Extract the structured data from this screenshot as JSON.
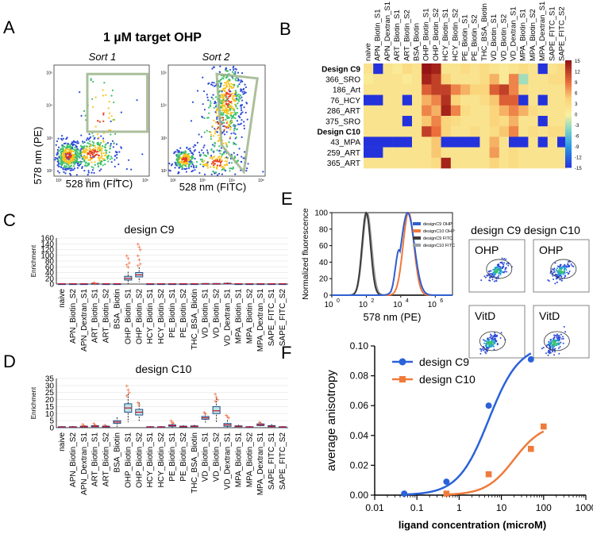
{
  "panel_letters": {
    "A": "A",
    "B": "B",
    "C": "C",
    "D": "D",
    "E": "E",
    "F": "F"
  },
  "panel_a": {
    "title": "1 µM target OHP",
    "sort1": "Sort 1",
    "sort2": "Sort 2",
    "ylabel": "578 nm (PE)",
    "xlabel1": "528 nm (FITC)",
    "xlabel2": "528 nm (FITC)"
  },
  "panel_e": {
    "xlabel": "578 nm (PE)",
    "ylabel": "Normalized fluorescence",
    "yticks": [
      "0",
      "20",
      "40",
      "60",
      "80",
      "100"
    ],
    "xticks": [
      "10",
      "10",
      "10",
      "10"
    ],
    "xtick_exps": [
      "0",
      "2",
      "4",
      "6"
    ],
    "legend": [
      {
        "label": "designC9 OHP",
        "color": "#2f5fd0"
      },
      {
        "label": "designC10 OHP",
        "color": "#f0783c"
      },
      {
        "label": "designC9 FITC",
        "color": "#3a3a3a"
      },
      {
        "label": "designC10 FITC",
        "color": "#9aa0a6"
      }
    ],
    "header": "design C9 design C10",
    "tiles": [
      "OHP",
      "OHP",
      "VitD",
      "VitD"
    ]
  },
  "chart_data": [
    {
      "panel": "B",
      "type": "heatmap",
      "columns": [
        "naive",
        "APN_Biotin_S1",
        "APN_Dextran_S1",
        "ART_Biotin_S1",
        "ART_Biotin_S2",
        "BSA_Biotin",
        "OHP_Biotin_S1",
        "OHP_Biotin_S2",
        "HCY_Biotin_S1",
        "HCY_Biotin_S2",
        "PE_Biotin_S1",
        "PE_Biotin_S2",
        "THC_BSA_Biotin",
        "VD_Biotin_S1",
        "VD_Biotin_S2",
        "VD_Dextran_S1",
        "MPA_Biotin_S1",
        "MPA_Biotin_S2",
        "MPA_Dextran_S1",
        "SAPE_FITC_S1",
        "SAPE_FITC_S2"
      ],
      "rows": [
        "Design C9",
        "366_SRO",
        "186_Art",
        "76_HCY",
        "286_ART",
        "375_SRO",
        "Design C10",
        "43_MPA",
        "259_ART",
        "365_ART"
      ],
      "bold_rows": [
        "Design C9",
        "Design C10"
      ],
      "colorbar_ticks": [
        "15",
        "12",
        "9",
        "6",
        "3",
        "0",
        "-3",
        "-6",
        "-9",
        "-12",
        "-15"
      ],
      "vlim": [
        -15,
        15
      ],
      "values": [
        [
          2,
          -15,
          2,
          1,
          3,
          2,
          15,
          14,
          2,
          2,
          3,
          2,
          3,
          2,
          1,
          2,
          3,
          2,
          -15,
          2,
          3
        ],
        [
          1,
          2,
          2,
          2,
          1,
          2,
          14,
          12,
          4,
          2,
          2,
          2,
          3,
          6,
          1,
          8,
          -3,
          2,
          2,
          3,
          3
        ],
        [
          2,
          2,
          2,
          2,
          2,
          2,
          10,
          12,
          12,
          8,
          6,
          4,
          4,
          10,
          12,
          8,
          3,
          2,
          2,
          2,
          2
        ],
        [
          -15,
          -15,
          2,
          2,
          -15,
          2,
          6,
          8,
          13,
          4,
          2,
          2,
          3,
          5,
          10,
          10,
          -15,
          2,
          -15,
          2,
          2
        ],
        [
          2,
          2,
          2,
          2,
          2,
          2,
          8,
          6,
          14,
          8,
          3,
          2,
          2,
          4,
          6,
          8,
          6,
          3,
          2,
          2,
          2
        ],
        [
          2,
          2,
          2,
          2,
          -15,
          2,
          5,
          8,
          4,
          3,
          2,
          2,
          2,
          4,
          3,
          6,
          2,
          2,
          -15,
          2,
          2
        ],
        [
          2,
          2,
          2,
          2,
          2,
          2,
          12,
          9,
          4,
          2,
          2,
          3,
          2,
          3,
          5,
          8,
          2,
          3,
          2,
          3,
          3
        ],
        [
          -15,
          -15,
          -15,
          -15,
          -15,
          2,
          2,
          5,
          -15,
          -15,
          -15,
          -15,
          2,
          6,
          2,
          -15,
          -15,
          2,
          -15,
          2,
          -15
        ],
        [
          -15,
          -15,
          2,
          2,
          2,
          2,
          2,
          5,
          2,
          2,
          2,
          2,
          2,
          7,
          2,
          3,
          2,
          2,
          2,
          2,
          2
        ],
        [
          2,
          2,
          2,
          2,
          2,
          2,
          2,
          3,
          14,
          2,
          2,
          2,
          2,
          4,
          2,
          3,
          2,
          2,
          2,
          2,
          2
        ]
      ]
    },
    {
      "panel": "C",
      "type": "box",
      "title": "design C9",
      "ylabel": "Enrichment",
      "ylim": [
        0,
        160
      ],
      "yticks": [
        "0",
        "20",
        "40",
        "60",
        "80",
        "100",
        "120",
        "140",
        "160"
      ],
      "categories": [
        "naive",
        "APN_Biotin_S2",
        "APN_Dextran_S1",
        "ART_Biotin_S1",
        "ART_Biotin_S2",
        "BSA_Biotin",
        "OHP_Biotin_S1",
        "OHP_Biotin_S2",
        "HCY_Biotin_S1",
        "HCY_Biotin_S2",
        "PE_Biotin_S1",
        "PE_Biotin_S2",
        "THC_BSA_Biotin",
        "VD_Biotin_S1",
        "VD_Biotin_S2",
        "VD_Dextran_S1",
        "MPA_Biotin_S1",
        "MPA_Biotin_S2",
        "MPA_Dextran_S1",
        "SAPE_FITC_S1",
        "SAPE_FITC_S2"
      ],
      "medians": [
        1,
        1,
        1,
        2,
        1,
        1,
        20,
        32,
        1,
        1,
        1,
        1,
        1,
        1,
        1,
        2,
        1,
        1,
        1,
        1,
        1
      ],
      "q1": [
        1,
        1,
        1,
        1,
        1,
        1,
        14,
        25,
        1,
        1,
        1,
        1,
        1,
        1,
        1,
        1,
        1,
        1,
        1,
        1,
        1
      ],
      "q3": [
        1,
        1,
        1,
        2,
        1,
        1,
        27,
        40,
        1,
        1,
        1,
        1,
        1,
        2,
        2,
        3,
        1,
        1,
        1,
        1,
        1
      ],
      "outliers": [
        [],
        [],
        [],
        [
          6,
          3
        ],
        [],
        [],
        [
          100,
          90,
          75,
          68,
          60
        ],
        [
          140,
          130,
          120,
          100,
          85,
          70,
          65
        ],
        [],
        [],
        [],
        [],
        [],
        [],
        [],
        [],
        [],
        [],
        [],
        [],
        []
      ]
    },
    {
      "panel": "D",
      "type": "box",
      "title": "design C10",
      "ylabel": "Enrichment",
      "ylim": [
        0,
        35
      ],
      "yticks": [
        "0",
        "5",
        "10",
        "15",
        "20",
        "25",
        "30",
        "35"
      ],
      "categories": [
        "naive",
        "APN_Biotin_S2",
        "APN_Dextran_S1",
        "ART_Biotin_S1",
        "ART_Biotin_S2",
        "BSA_Biotin",
        "OHP_Biotin_S1",
        "OHP_Biotin_S2",
        "HCY_Biotin_S1",
        "HCY_Biotin_S2",
        "PE_Biotin_S1",
        "PE_Biotin_S2",
        "THC_BSA_Biotin",
        "VD_Biotin_S1",
        "VD_Biotin_S2",
        "VD_Dextran_S1",
        "MPA_Biotin_S1",
        "MPA_Biotin_S2",
        "MPA_Dextran_S1",
        "SAPE_FITC_S1",
        "SAPE_FITC_S2"
      ],
      "medians": [
        0.5,
        0.5,
        0.8,
        1,
        0.8,
        4,
        14,
        11,
        0.5,
        0.5,
        1.5,
        0.8,
        1,
        7,
        12,
        2,
        1,
        0.5,
        2,
        1,
        0.5
      ],
      "q1": [
        0.3,
        0.3,
        0.5,
        0.7,
        0.5,
        3,
        11,
        9,
        0.3,
        0.3,
        1,
        0.5,
        0.7,
        6,
        10,
        1,
        0.7,
        0.3,
        1.5,
        0.7,
        0.3
      ],
      "q3": [
        0.7,
        0.7,
        1.1,
        1.4,
        1.1,
        5,
        17,
        13,
        0.7,
        0.7,
        2,
        1.1,
        1.3,
        8,
        15,
        3,
        1.3,
        0.7,
        2.7,
        1.5,
        0.7
      ],
      "outliers": [
        [],
        [],
        [
          2.5,
          1.8
        ],
        [
          3,
          2
        ],
        [
          2
        ],
        [],
        [
          30,
          27,
          25,
          23
        ],
        [
          18,
          16
        ],
        [],
        [],
        [
          5,
          4,
          3.5
        ],
        [],
        [],
        [
          11,
          10
        ],
        [
          24,
          22,
          20,
          19
        ],
        [
          9,
          8,
          7
        ],
        [],
        [],
        [
          4,
          3.5
        ],
        [],
        []
      ]
    },
    {
      "panel": "E",
      "type": "line",
      "xlabel": "578 nm (PE)",
      "ylabel": "Normalized fluorescence",
      "ylim": [
        0,
        100
      ],
      "xscale": "log",
      "xlim_exp": [
        0,
        7
      ],
      "series": [
        {
          "name": "designC9 OHP",
          "color": "#2f5fd0",
          "peak_log10": 4.4,
          "width": 0.55,
          "left_shoulder_log10": 3.9
        },
        {
          "name": "designC10 OHP",
          "color": "#f0783c",
          "peak_log10": 4.45,
          "width": 0.45
        },
        {
          "name": "designC9 FITC",
          "color": "#3a3a3a",
          "peak_log10": 2.0,
          "width": 0.35
        },
        {
          "name": "designC10 FITC",
          "color": "#9aa0a6",
          "peak_log10": 2.05,
          "width": 0.37
        }
      ]
    },
    {
      "panel": "F",
      "type": "scatter",
      "xlabel": "ligand concentration (microM)",
      "ylabel": "average anisotropy",
      "xscale": "log",
      "xticks": [
        "0.01",
        "0.1",
        "1",
        "10",
        "100",
        "1000"
      ],
      "yticks": [
        "0.00",
        "0.02",
        "0.04",
        "0.06",
        "0.08",
        "0.10"
      ],
      "ylim": [
        0,
        0.1
      ],
      "xlim": [
        0.01,
        1000
      ],
      "series": [
        {
          "name": "design C9",
          "color": "#2b62d9",
          "marker": "circle",
          "x": [
            0.05,
            0.5,
            5,
            50
          ],
          "y": [
            0.001,
            0.009,
            0.06,
            0.091
          ],
          "fit": {
            "bottom": 0.0,
            "top": 0.101,
            "ec50": 5.0,
            "hill": 1.2
          }
        },
        {
          "name": "design C10",
          "color": "#f07a3a",
          "marker": "square",
          "x": [
            0.5,
            5,
            50,
            100
          ],
          "y": [
            0.001,
            0.014,
            0.031,
            0.046
          ],
          "fit": {
            "bottom": 0.0,
            "top": 0.048,
            "ec50": 20.0,
            "hill": 1.3
          }
        }
      ]
    }
  ]
}
